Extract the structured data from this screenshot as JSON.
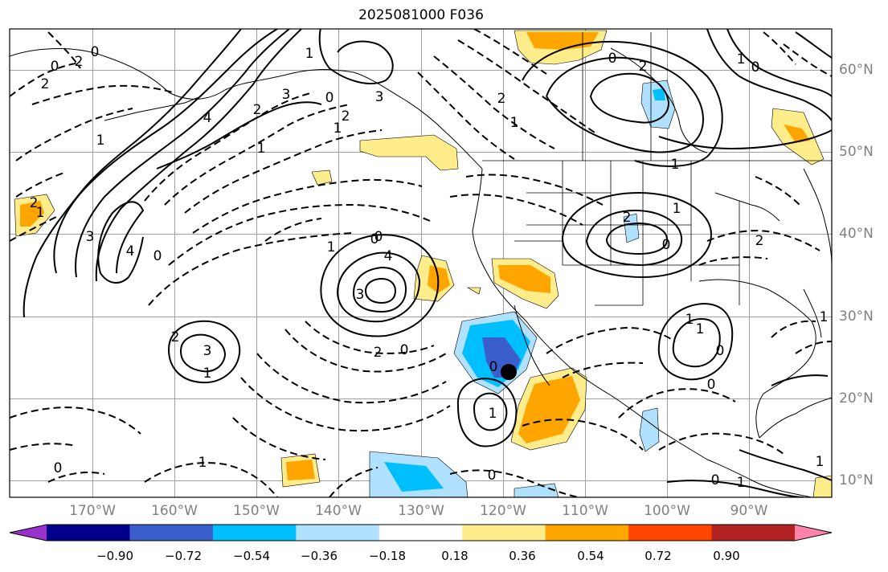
{
  "title": "2025081000 F036",
  "map": {
    "projection": "plate-carree",
    "lon_range": [
      -180,
      -80
    ],
    "lat_range": [
      8,
      65
    ],
    "grid": true,
    "coastlines": true,
    "state_borders": true
  },
  "lat_labels": [
    "60°N",
    "50°N",
    "40°N",
    "30°N",
    "20°N",
    "10°N"
  ],
  "lon_labels": [
    "170°W",
    "160°W",
    "150°W",
    "140°W",
    "130°W",
    "120°W",
    "110°W",
    "100°W",
    "90°W"
  ],
  "colorbar": {
    "orientation": "horizontal",
    "extend": "both",
    "colors": [
      "#9932cc",
      "#00008b",
      "#3a5fcd",
      "#00bfff",
      "#b0e2ff",
      "#ffffff",
      "#ffec8b",
      "#ffa500",
      "#ff4500",
      "#b22222",
      "#ff82ab"
    ],
    "tick_labels": [
      "−0.90",
      "−0.72",
      "−0.54",
      "−0.36",
      "−0.18",
      "0.18",
      "0.36",
      "0.54",
      "0.72",
      "0.90"
    ]
  },
  "contour_labels": [
    "0",
    "2",
    "0",
    "2",
    "1",
    "4",
    "3",
    "2",
    "1",
    "0",
    "4",
    "1",
    "3",
    "1",
    "2",
    "0",
    "3",
    "2",
    "1",
    "0",
    "3",
    "4",
    "0",
    "1",
    "2",
    "0",
    "1",
    "2",
    "3",
    "1",
    "0",
    "1",
    "2",
    "1",
    "0",
    "2",
    "1",
    "2",
    "0",
    "1",
    "0",
    "1",
    "0",
    "1",
    "0",
    "0",
    "1",
    "0",
    "1",
    "0",
    "2",
    "1",
    "1"
  ],
  "marker": {
    "type": "black-dot",
    "lon": -119.2,
    "lat": 23.2
  }
}
